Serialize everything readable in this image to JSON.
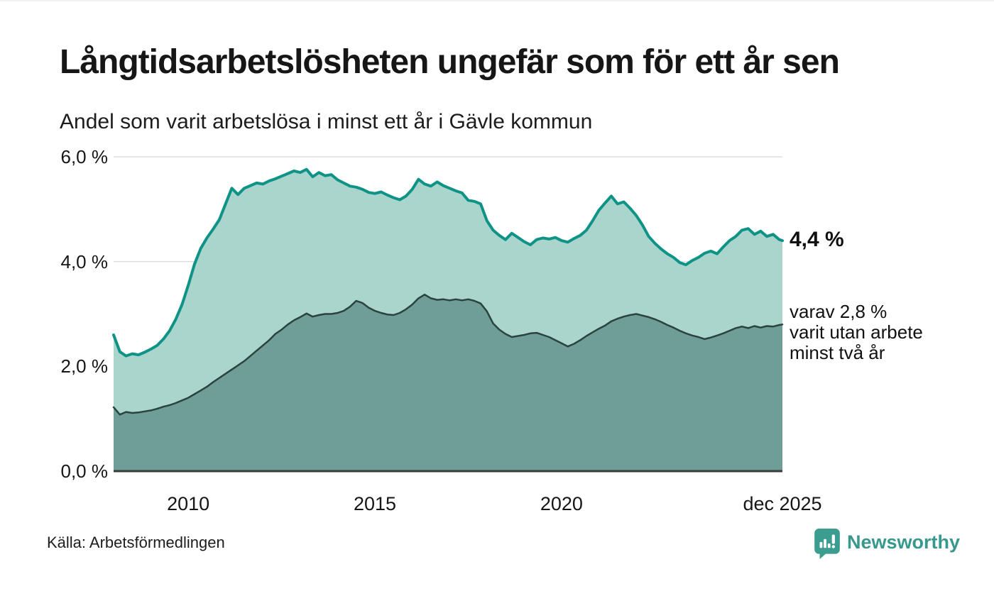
{
  "header": {
    "title": "Långtidsarbetslösheten ungefär som för ett år sen",
    "subtitle": "Andel som varit arbetslösa i minst ett år i Gävle kommun"
  },
  "annotations": {
    "total_end_label": "4,4 %",
    "two_year_lines": [
      "varav 2,8 %",
      "varit utan arbete",
      "minst två år"
    ]
  },
  "footer": {
    "source": "Källa: Arbetsförmedlingen",
    "logo_text": "Newsworthy",
    "logo_icon": "speech-bubble-bar-chart-icon"
  },
  "colors": {
    "light_area": "#a9d5cd",
    "teal_line": "#0f9386",
    "dark_area": "#6f9d97",
    "dark_line": "#2b433e",
    "grid": "#000000",
    "axis": "#3b3b3b",
    "logo_teal": "#38988d"
  },
  "chart_data": {
    "type": "area",
    "title": "Långtidsarbetslösheten ungefär som för ett år sen",
    "subtitle": "Andel som varit arbetslösa i minst ett år i Gävle kommun",
    "xlabel": "",
    "ylabel": "",
    "xlim": [
      2008.0,
      2025.917
    ],
    "ylim": [
      0,
      6
    ],
    "grid": "horizontal",
    "legend_position": "end-of-line labels",
    "yticks": [
      {
        "label": "0,0 %",
        "value": 0
      },
      {
        "label": "2,0 %",
        "value": 2
      },
      {
        "label": "4,0 %",
        "value": 4
      },
      {
        "label": "6,0 %",
        "value": 6
      }
    ],
    "xticks": [
      {
        "label": "2010",
        "value": 2010
      },
      {
        "label": "2015",
        "value": 2015
      },
      {
        "label": "2020",
        "value": 2020
      },
      {
        "label": "dec 2025",
        "value": 2025.917
      }
    ],
    "x": [
      2008.0,
      2008.167,
      2008.333,
      2008.5,
      2008.667,
      2008.833,
      2009.0,
      2009.167,
      2009.333,
      2009.5,
      2009.667,
      2009.833,
      2010.0,
      2010.167,
      2010.333,
      2010.5,
      2010.667,
      2010.833,
      2011.0,
      2011.167,
      2011.333,
      2011.5,
      2011.667,
      2011.833,
      2012.0,
      2012.167,
      2012.333,
      2012.5,
      2012.667,
      2012.833,
      2013.0,
      2013.167,
      2013.333,
      2013.5,
      2013.667,
      2013.833,
      2014.0,
      2014.167,
      2014.333,
      2014.5,
      2014.667,
      2014.833,
      2015.0,
      2015.167,
      2015.333,
      2015.5,
      2015.667,
      2015.833,
      2016.0,
      2016.167,
      2016.333,
      2016.5,
      2016.667,
      2016.833,
      2017.0,
      2017.167,
      2017.333,
      2017.5,
      2017.667,
      2017.833,
      2018.0,
      2018.167,
      2018.333,
      2018.5,
      2018.667,
      2018.833,
      2019.0,
      2019.167,
      2019.333,
      2019.5,
      2019.667,
      2019.833,
      2020.0,
      2020.167,
      2020.333,
      2020.5,
      2020.667,
      2020.833,
      2021.0,
      2021.167,
      2021.333,
      2021.5,
      2021.667,
      2021.833,
      2022.0,
      2022.167,
      2022.333,
      2022.5,
      2022.667,
      2022.833,
      2023.0,
      2023.167,
      2023.333,
      2023.5,
      2023.667,
      2023.833,
      2024.0,
      2024.167,
      2024.333,
      2024.5,
      2024.667,
      2024.833,
      2025.0,
      2025.167,
      2025.333,
      2025.5,
      2025.667,
      2025.833,
      2025.917
    ],
    "series": [
      {
        "name": "Andel som varit arbetslösa minst ett år",
        "end_value": 4.4,
        "end_label": "4,4 %",
        "fill": "#a9d5cd",
        "line": "#0f9386",
        "line_width": 4,
        "values": [
          2.6,
          2.28,
          2.2,
          2.24,
          2.22,
          2.27,
          2.33,
          2.4,
          2.52,
          2.68,
          2.9,
          3.18,
          3.55,
          3.95,
          4.25,
          4.45,
          4.62,
          4.8,
          5.1,
          5.4,
          5.28,
          5.4,
          5.45,
          5.5,
          5.48,
          5.54,
          5.58,
          5.63,
          5.68,
          5.73,
          5.7,
          5.76,
          5.62,
          5.7,
          5.64,
          5.66,
          5.56,
          5.5,
          5.44,
          5.42,
          5.38,
          5.32,
          5.3,
          5.33,
          5.27,
          5.22,
          5.18,
          5.25,
          5.38,
          5.57,
          5.48,
          5.44,
          5.52,
          5.45,
          5.4,
          5.35,
          5.31,
          5.17,
          5.15,
          5.1,
          4.78,
          4.6,
          4.5,
          4.42,
          4.54,
          4.46,
          4.38,
          4.32,
          4.42,
          4.45,
          4.43,
          4.46,
          4.4,
          4.37,
          4.44,
          4.5,
          4.6,
          4.78,
          4.98,
          5.12,
          5.25,
          5.1,
          5.14,
          5.02,
          4.88,
          4.7,
          4.48,
          4.35,
          4.24,
          4.15,
          4.08,
          3.98,
          3.94,
          4.02,
          4.08,
          4.16,
          4.2,
          4.15,
          4.28,
          4.4,
          4.48,
          4.6,
          4.63,
          4.52,
          4.58,
          4.48,
          4.52,
          4.42,
          4.4
        ]
      },
      {
        "name": "varav utan arbete minst två år",
        "end_value": 2.8,
        "end_label": "varav 2,8 % varit utan arbete minst två år",
        "fill": "#6f9d97",
        "line": "#2b433e",
        "line_width": 2.5,
        "values": [
          1.22,
          1.08,
          1.13,
          1.11,
          1.12,
          1.14,
          1.16,
          1.19,
          1.23,
          1.26,
          1.3,
          1.35,
          1.4,
          1.47,
          1.54,
          1.61,
          1.7,
          1.78,
          1.86,
          1.94,
          2.02,
          2.1,
          2.2,
          2.3,
          2.4,
          2.5,
          2.62,
          2.7,
          2.8,
          2.88,
          2.94,
          3.01,
          2.95,
          2.98,
          3.0,
          3.0,
          3.02,
          3.06,
          3.14,
          3.25,
          3.21,
          3.12,
          3.06,
          3.02,
          2.99,
          2.98,
          3.02,
          3.09,
          3.18,
          3.3,
          3.37,
          3.3,
          3.27,
          3.28,
          3.26,
          3.28,
          3.26,
          3.28,
          3.25,
          3.2,
          3.05,
          2.82,
          2.7,
          2.62,
          2.56,
          2.58,
          2.6,
          2.63,
          2.64,
          2.6,
          2.56,
          2.5,
          2.44,
          2.38,
          2.43,
          2.5,
          2.58,
          2.65,
          2.72,
          2.78,
          2.86,
          2.91,
          2.95,
          2.98,
          3.0,
          2.97,
          2.94,
          2.9,
          2.85,
          2.79,
          2.74,
          2.68,
          2.63,
          2.59,
          2.56,
          2.52,
          2.55,
          2.59,
          2.63,
          2.68,
          2.73,
          2.76,
          2.73,
          2.77,
          2.74,
          2.77,
          2.76,
          2.79,
          2.8
        ]
      }
    ]
  }
}
